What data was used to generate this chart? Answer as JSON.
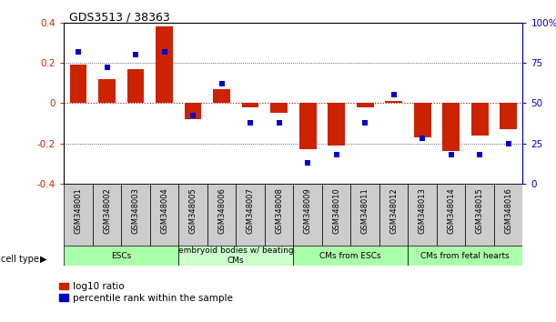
{
  "title": "GDS3513 / 38363",
  "samples": [
    "GSM348001",
    "GSM348002",
    "GSM348003",
    "GSM348004",
    "GSM348005",
    "GSM348006",
    "GSM348007",
    "GSM348008",
    "GSM348009",
    "GSM348010",
    "GSM348011",
    "GSM348012",
    "GSM348013",
    "GSM348014",
    "GSM348015",
    "GSM348016"
  ],
  "log10_ratio": [
    0.19,
    0.12,
    0.17,
    0.38,
    -0.08,
    0.07,
    -0.02,
    -0.05,
    -0.23,
    -0.21,
    -0.02,
    0.01,
    -0.17,
    -0.24,
    -0.16,
    -0.13
  ],
  "percentile_rank": [
    82,
    72,
    80,
    82,
    42,
    62,
    38,
    38,
    13,
    18,
    38,
    55,
    28,
    18,
    18,
    25
  ],
  "cell_groups": [
    {
      "label": "ESCs",
      "start": 0,
      "end": 3,
      "color": "#aaffaa"
    },
    {
      "label": "embryoid bodies w/ beating\nCMs",
      "start": 4,
      "end": 7,
      "color": "#ccffcc"
    },
    {
      "label": "CMs from ESCs",
      "start": 8,
      "end": 11,
      "color": "#aaffaa"
    },
    {
      "label": "CMs from fetal hearts",
      "start": 12,
      "end": 15,
      "color": "#aaffaa"
    }
  ],
  "bar_color": "#cc2200",
  "dot_color": "#0000cc",
  "zero_line_color": "#cc0000",
  "grid_color": "#333333",
  "ylim_left": [
    -0.4,
    0.4
  ],
  "ylim_right": [
    0,
    100
  ],
  "yticks_left": [
    -0.4,
    -0.2,
    0.0,
    0.2,
    0.4
  ],
  "yticks_right": [
    0,
    25,
    50,
    75,
    100
  ],
  "label_bg_color": "#cccccc",
  "bar_width": 0.6
}
